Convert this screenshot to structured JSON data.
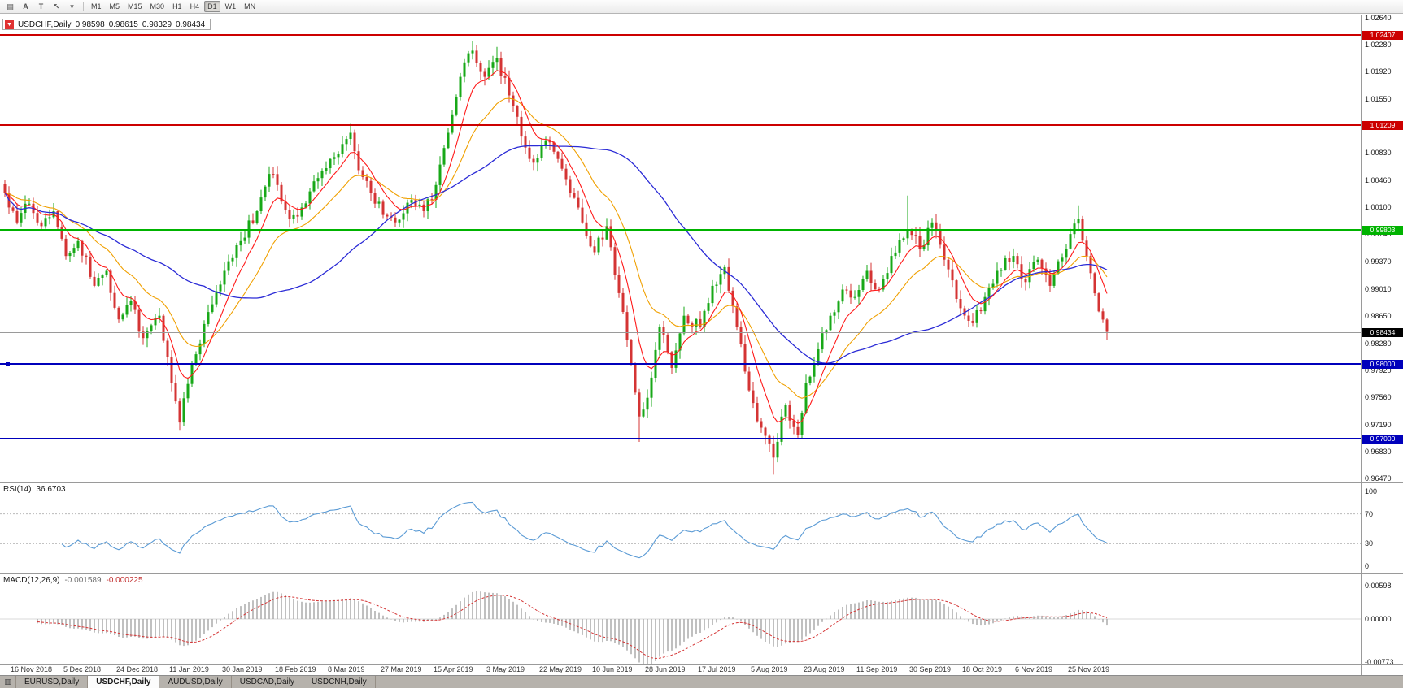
{
  "toolbar": {
    "tools": [
      {
        "name": "chart-type-button",
        "glyph": "▤"
      },
      {
        "name": "font-button",
        "glyph": "A"
      },
      {
        "name": "text-label-button",
        "glyph": "T"
      },
      {
        "name": "cursor-tool-button",
        "glyph": "↖"
      },
      {
        "name": "tools-dropdown-button",
        "glyph": "▾"
      }
    ],
    "timeframes": [
      {
        "label": "M1",
        "active": false
      },
      {
        "label": "M5",
        "active": false
      },
      {
        "label": "M15",
        "active": false
      },
      {
        "label": "M30",
        "active": false
      },
      {
        "label": "H1",
        "active": false
      },
      {
        "label": "H4",
        "active": false
      },
      {
        "label": "D1",
        "active": true
      },
      {
        "label": "W1",
        "active": false
      },
      {
        "label": "MN",
        "active": false
      }
    ]
  },
  "chart": {
    "expand_glyph": "▼",
    "scale_arrow_glyph": "▾",
    "symbol_line": {
      "symbol": "USDCHF,Daily",
      "open": "0.98598",
      "high": "0.98615",
      "low": "0.98329",
      "close": "0.98434"
    }
  },
  "rsi": {
    "name": "RSI(14)",
    "value": "36.6703",
    "ticks": [
      "100",
      "70",
      "30",
      "0"
    ]
  },
  "macd": {
    "name": "MACD(12,26,9)",
    "value_main": "-0.001589",
    "value_signal": "-0.000225",
    "ticks": [
      "0.00598",
      "0.00000",
      "-0.00773"
    ]
  },
  "tabbar": {
    "menu_glyph": "▥",
    "tabs": [
      {
        "label": "EURUSD,Daily",
        "active": false
      },
      {
        "label": "USDCHF,Daily",
        "active": true
      },
      {
        "label": "AUDUSD,Daily",
        "active": false
      },
      {
        "label": "USDCAD,Daily",
        "active": false
      },
      {
        "label": "USDCNH,Daily",
        "active": false
      }
    ]
  },
  "chart_data": {
    "type": "candlestick",
    "symbol": "USDCHF",
    "timeframe": "Daily",
    "last_ohlc": {
      "open": 0.98598,
      "high": 0.98615,
      "low": 0.98329,
      "close": 0.98434
    },
    "ylim": [
      0.9647,
      1.0264
    ],
    "y_tick_labels": [
      "1.02640",
      "1.02280",
      "1.01920",
      "1.01550",
      "1.01190",
      "1.00830",
      "1.00460",
      "1.00100",
      "0.99740",
      "0.99370",
      "0.99010",
      "0.98650",
      "0.98280",
      "0.97920",
      "0.97560",
      "0.97190",
      "0.96830",
      "0.96470"
    ],
    "x_labels": [
      "16 Nov 2018",
      "5 Dec 2018",
      "24 Dec 2018",
      "11 Jan 2019",
      "30 Jan 2019",
      "18 Feb 2019",
      "8 Mar 2019",
      "27 Mar 2019",
      "15 Apr 2019",
      "3 May 2019",
      "22 May 2019",
      "10 Jun 2019",
      "28 Jun 2019",
      "17 Jul 2019",
      "5 Aug 2019",
      "23 Aug 2019",
      "11 Sep 2019",
      "30 Sep 2019",
      "18 Oct 2019",
      "6 Nov 2019",
      "25 Nov 2019"
    ],
    "candle_count": 272,
    "candle_colors": {
      "up": "#18a818",
      "down": "#d43434"
    },
    "close_anchors": [
      [
        0,
        1.003
      ],
      [
        3,
        0.999
      ],
      [
        6,
        1.0015
      ],
      [
        9,
        0.9985
      ],
      [
        12,
        1.0005
      ],
      [
        15,
        0.9945
      ],
      [
        18,
        0.9965
      ],
      [
        22,
        0.9905
      ],
      [
        25,
        0.9925
      ],
      [
        28,
        0.986
      ],
      [
        31,
        0.9885
      ],
      [
        34,
        0.9835
      ],
      [
        38,
        0.9865
      ],
      [
        41,
        0.9775
      ],
      [
        43,
        0.9722
      ],
      [
        46,
        0.98
      ],
      [
        50,
        0.987
      ],
      [
        54,
        0.9925
      ],
      [
        58,
        0.9965
      ],
      [
        62,
        1.0005
      ],
      [
        65,
        1.0055
      ],
      [
        67,
        1.004
      ],
      [
        70,
        0.9995
      ],
      [
        73,
        1.001
      ],
      [
        76,
        1.0045
      ],
      [
        80,
        1.0075
      ],
      [
        83,
        1.0095
      ],
      [
        85,
        1.011
      ],
      [
        87,
        1.006
      ],
      [
        90,
        1.003
      ],
      [
        93,
        1.0
      ],
      [
        96,
        0.999
      ],
      [
        100,
        1.002
      ],
      [
        103,
        1.0005
      ],
      [
        106,
        1.004
      ],
      [
        109,
        1.011
      ],
      [
        112,
        1.0185
      ],
      [
        115,
        1.022
      ],
      [
        118,
        1.0185
      ],
      [
        121,
        1.021
      ],
      [
        124,
        1.016
      ],
      [
        127,
        1.0105
      ],
      [
        130,
        1.007
      ],
      [
        133,
        1.01
      ],
      [
        136,
        1.0075
      ],
      [
        139,
        1.003
      ],
      [
        142,
        0.999
      ],
      [
        145,
        0.995
      ],
      [
        148,
        0.9985
      ],
      [
        150,
        0.992
      ],
      [
        152,
        0.987
      ],
      [
        154,
        0.98
      ],
      [
        156,
        0.973
      ],
      [
        158,
        0.9755
      ],
      [
        161,
        0.985
      ],
      [
        164,
        0.9795
      ],
      [
        167,
        0.9865
      ],
      [
        171,
        0.985
      ],
      [
        174,
        0.9905
      ],
      [
        177,
        0.993
      ],
      [
        180,
        0.985
      ],
      [
        183,
        0.9765
      ],
      [
        186,
        0.9715
      ],
      [
        189,
        0.9675
      ],
      [
        192,
        0.9745
      ],
      [
        195,
        0.9705
      ],
      [
        197,
        0.9775
      ],
      [
        200,
        0.982
      ],
      [
        203,
        0.9865
      ],
      [
        206,
        0.99
      ],
      [
        209,
        0.989
      ],
      [
        212,
        0.9925
      ],
      [
        215,
        0.99
      ],
      [
        218,
        0.9945
      ],
      [
        222,
        0.998
      ],
      [
        225,
        0.9955
      ],
      [
        228,
        0.999
      ],
      [
        231,
        0.994
      ],
      [
        235,
        0.9875
      ],
      [
        238,
        0.9855
      ],
      [
        241,
        0.989
      ],
      [
        244,
        0.9925
      ],
      [
        248,
        0.9945
      ],
      [
        251,
        0.991
      ],
      [
        254,
        0.994
      ],
      [
        257,
        0.9905
      ],
      [
        261,
        0.9955
      ],
      [
        264,
        0.9995
      ],
      [
        266,
        0.9945
      ],
      [
        268,
        0.9895
      ],
      [
        270,
        0.98598
      ],
      [
        271,
        0.98434
      ]
    ],
    "high_overrides": [
      [
        85,
        1.0122
      ],
      [
        115,
        1.0233
      ],
      [
        121,
        1.0225
      ],
      [
        222,
        1.0026
      ],
      [
        264,
        1.0013
      ],
      [
        271,
        0.98615
      ]
    ],
    "low_overrides": [
      [
        43,
        0.9712
      ],
      [
        156,
        0.9696
      ],
      [
        189,
        0.9652
      ],
      [
        271,
        0.98329
      ]
    ],
    "horizontal_levels": [
      {
        "price": 1.02407,
        "label": "1.02407",
        "color": "#cc0000",
        "width": 2,
        "kind": "resistance-line"
      },
      {
        "price": 1.01209,
        "label": "1.01209",
        "color": "#cc0000",
        "width": 2,
        "kind": "resistance-line"
      },
      {
        "price": 0.99803,
        "label": "0.99803",
        "color": "#00b300",
        "width": 2,
        "kind": "support-resistance-line"
      },
      {
        "price": 0.98434,
        "label": "0.98434",
        "color": "#000000",
        "line_color": "#9a9a9a",
        "width": 1,
        "kind": "bid-price-line"
      },
      {
        "price": 0.98,
        "label": "0.98000",
        "color": "#0000bb",
        "width": 2,
        "kind": "support-line",
        "handle": true
      },
      {
        "price": 0.97,
        "label": "0.97000",
        "color": "#0000bb",
        "width": 2,
        "kind": "support-line"
      }
    ],
    "moving_averages": [
      {
        "name": "fast-ma",
        "period": 8,
        "type": "ema",
        "color": "#ff1a1a"
      },
      {
        "name": "medium-ma",
        "period": 20,
        "type": "ema",
        "color": "#f0a000"
      },
      {
        "name": "slow-ma",
        "period": 50,
        "type": "sma",
        "color": "#2b2bd6"
      }
    ],
    "indicators": {
      "rsi": {
        "period": 14,
        "current": 36.6703,
        "levels": [
          70,
          30
        ],
        "color": "#5b9bd5",
        "level_color": "#b9b9b9"
      },
      "macd": {
        "fast": 12,
        "slow": 26,
        "signal": 9,
        "current_main": -0.001589,
        "current_signal": -0.000225,
        "histogram_color": "#a6a6a6",
        "signal_color": "#d43434"
      }
    }
  }
}
